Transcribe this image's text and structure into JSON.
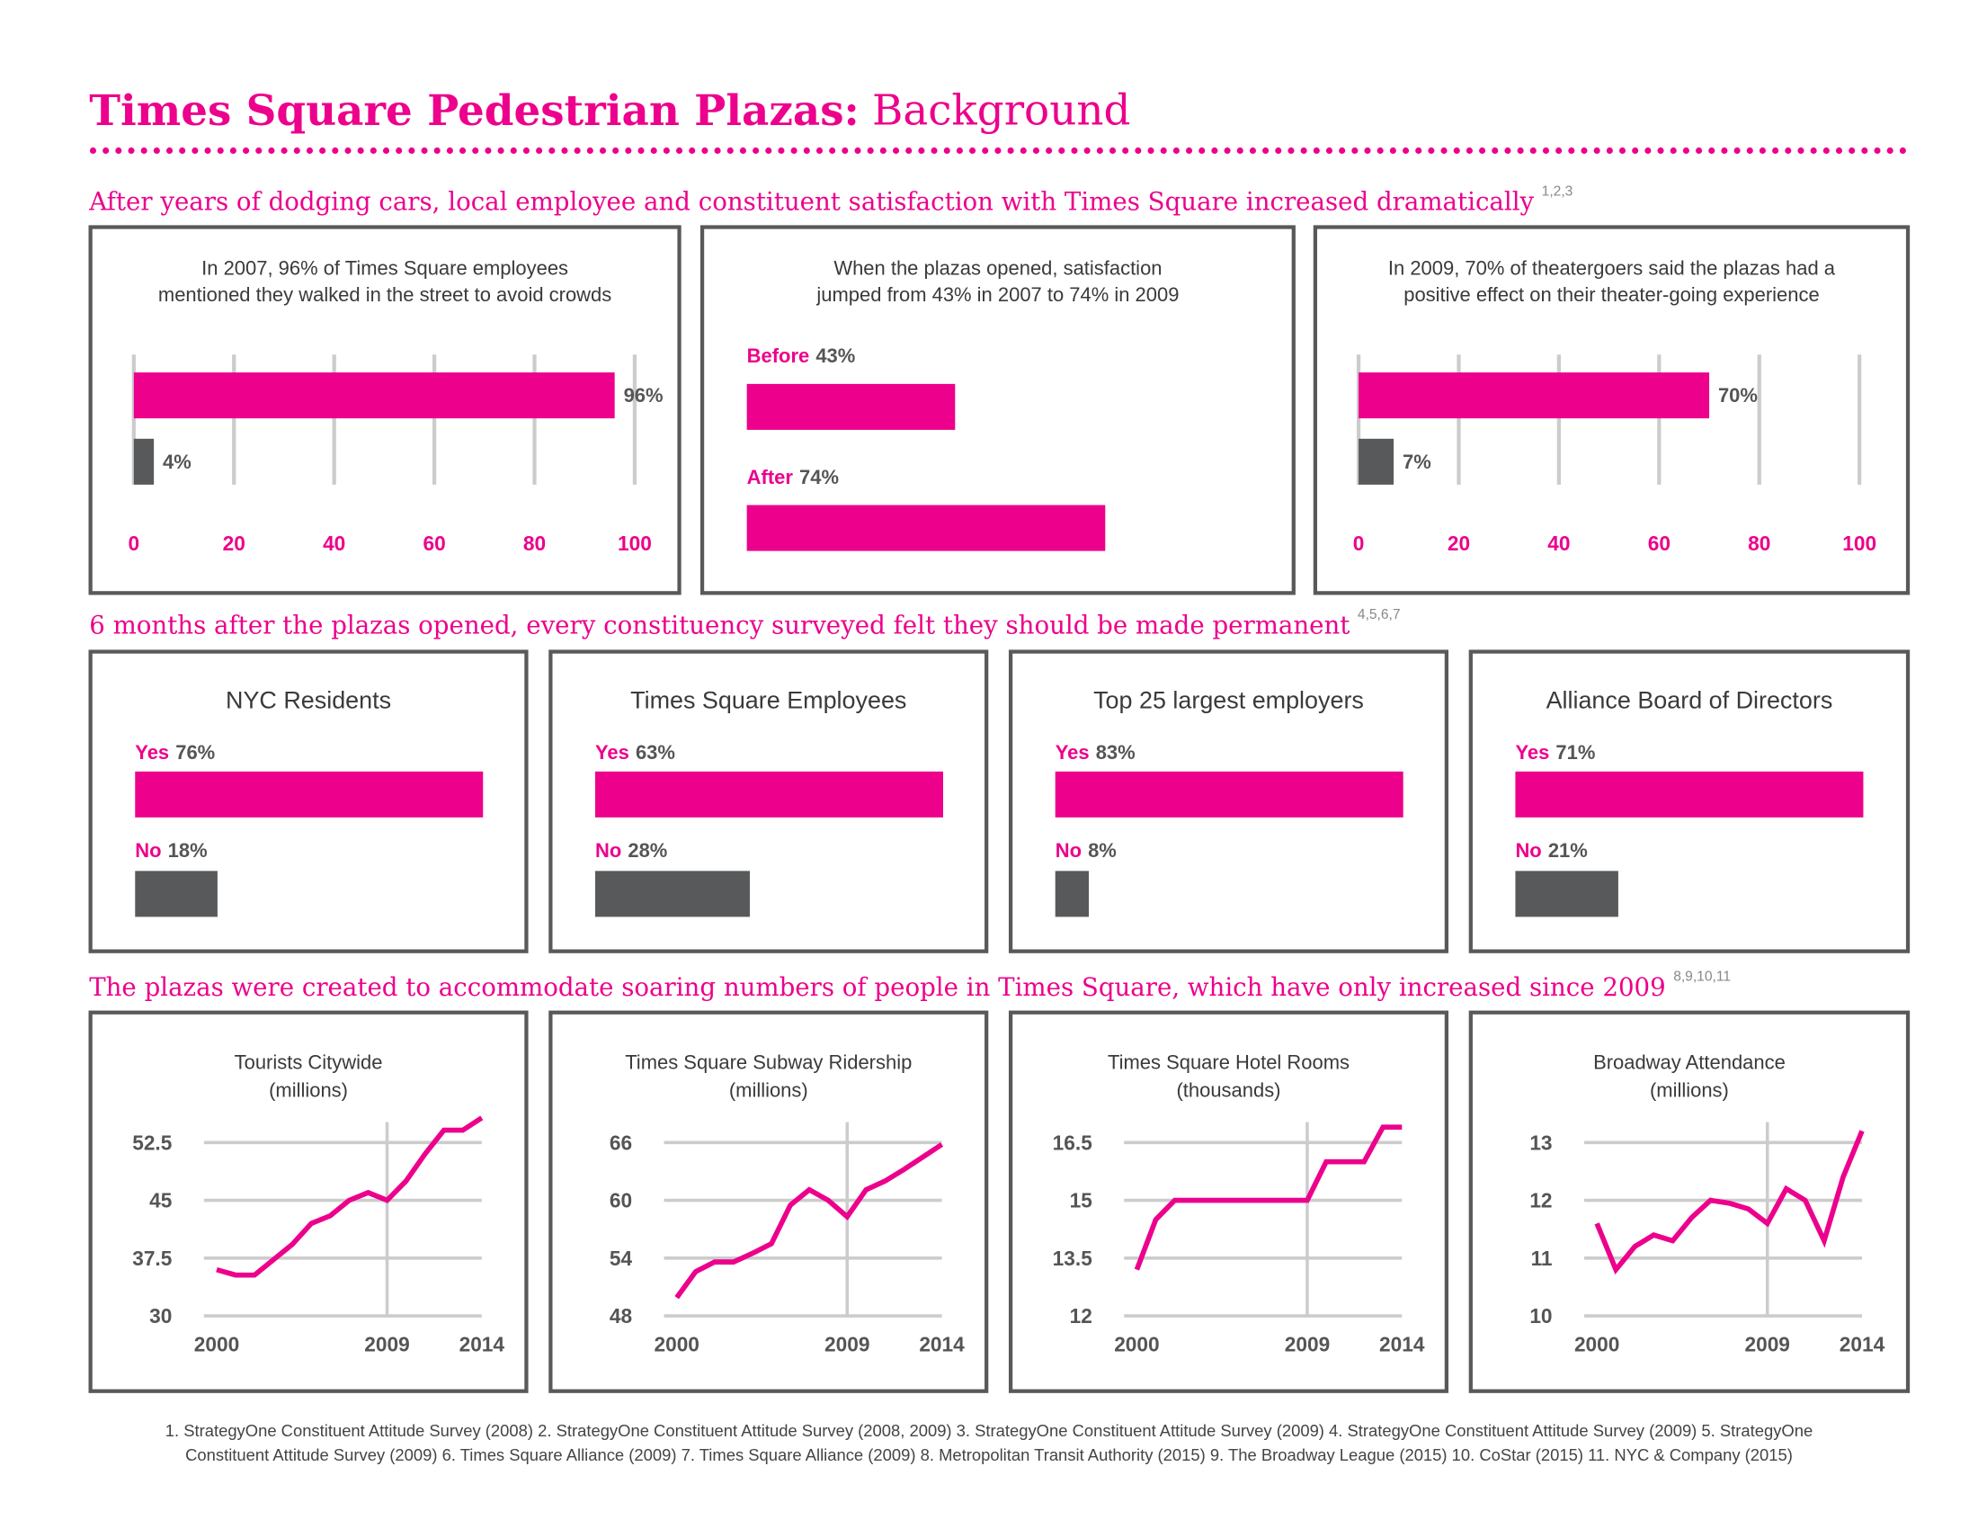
{
  "title": [
    "Times Square Pedestrian Plazas:",
    "Background"
  ],
  "sections": [
    {
      "text": "After years of dodging cars, local employee and constituent satisfaction with Times Square increased dramatically",
      "notes": "1,2,3"
    },
    {
      "text": "6 months after the plazas opened, every constituency surveyed felt they should be made permanent",
      "notes": "4,5,6,7"
    },
    {
      "text": "The plazas were created to accommodate soaring numbers of people in Times Square, which have only increased since 2009",
      "notes": "8,9,10,11"
    }
  ],
  "footnotes": [
    "1. StrategyOne Constituent Attitude Survey (2008) 2. StrategyOne Constituent Attitude Survey (2008, 2009) 3. StrategyOne Constituent Attitude Survey (2009) 4. StrategyOne Constituent Attitude Survey (2009) 5. StrategyOne",
    "Constituent Attitude Survey (2009) 6. Times Square Alliance (2009) 7. Times Square Alliance (2009) 8. Metropolitan Transit Authority (2015) 9. The Broadway League (2015) 10. CoStar (2015) 11. NYC & Company (2015)"
  ],
  "chart_data": [
    {
      "type": "bar",
      "horizontal": true,
      "title": [
        "In 2007, 96% of Times Square employees",
        "mentioned they walked in the street to avoid crowds"
      ],
      "values": [
        96,
        4
      ],
      "value_labels": [
        "96%",
        "4%"
      ],
      "colors": [
        "#ec008c",
        "#58595b"
      ],
      "xlim": [
        0,
        100
      ],
      "xticks": [
        0,
        20,
        40,
        60,
        80,
        100
      ],
      "grid": true
    },
    {
      "type": "bar",
      "horizontal": true,
      "title": [
        "When the plazas opened, satisfaction",
        "jumped from 43% in 2007 to 74% in 2009"
      ],
      "categories": [
        "Before",
        "After"
      ],
      "values": [
        43,
        74
      ],
      "value_labels": [
        "43%",
        "74%"
      ],
      "colors": [
        "#ec008c",
        "#ec008c"
      ],
      "xlim": [
        0,
        100
      ]
    },
    {
      "type": "bar",
      "horizontal": true,
      "title": [
        "In 2009, 70% of theatergoers said the plazas had a",
        "positive effect on their theater-going experience"
      ],
      "values": [
        70,
        7
      ],
      "value_labels": [
        "70%",
        "7%"
      ],
      "colors": [
        "#ec008c",
        "#58595b"
      ],
      "xlim": [
        0,
        100
      ],
      "xticks": [
        0,
        20,
        40,
        60,
        80,
        100
      ],
      "grid": true
    },
    {
      "type": "bar",
      "horizontal": true,
      "title": [
        "NYC Residents"
      ],
      "categories": [
        "Yes",
        "No"
      ],
      "values": [
        76,
        18
      ],
      "value_labels": [
        "76%",
        "18%"
      ],
      "colors": [
        "#ec008c",
        "#58595b"
      ],
      "xlim": [
        0,
        76
      ]
    },
    {
      "type": "bar",
      "horizontal": true,
      "title": [
        "Times Square Employees"
      ],
      "categories": [
        "Yes",
        "No"
      ],
      "values": [
        63,
        28
      ],
      "value_labels": [
        "63%",
        "28%"
      ],
      "colors": [
        "#ec008c",
        "#58595b"
      ],
      "xlim": [
        0,
        63
      ]
    },
    {
      "type": "bar",
      "horizontal": true,
      "title": [
        "Top 25 largest employers"
      ],
      "categories": [
        "Yes",
        "No"
      ],
      "values": [
        83,
        8
      ],
      "value_labels": [
        "83%",
        "8%"
      ],
      "colors": [
        "#ec008c",
        "#58595b"
      ],
      "xlim": [
        0,
        83
      ]
    },
    {
      "type": "bar",
      "horizontal": true,
      "title": [
        "Alliance Board of Directors"
      ],
      "categories": [
        "Yes",
        "No"
      ],
      "values": [
        71,
        21
      ],
      "value_labels": [
        "71%",
        "21%"
      ],
      "colors": [
        "#ec008c",
        "#58595b"
      ],
      "xlim": [
        0,
        71
      ]
    },
    {
      "type": "line",
      "title": [
        "Tourists Citywide",
        "(millions)"
      ],
      "color": "#ec008c",
      "x": [
        2000,
        2001,
        2002,
        2003,
        2004,
        2005,
        2006,
        2007,
        2008,
        2009,
        2010,
        2011,
        2012,
        2013,
        2014
      ],
      "values": [
        36.0,
        35.3,
        35.3,
        37.3,
        39.3,
        42.0,
        43.0,
        45.0,
        46.0,
        45.0,
        47.5,
        51.0,
        54.1,
        54.1,
        55.7
      ],
      "xlim": [
        2000,
        2014
      ],
      "xticks": [
        2000,
        2009,
        2014
      ],
      "ylim": [
        30,
        52.5
      ],
      "yticks": [
        30,
        37.5,
        45,
        52.5
      ],
      "grid": true
    },
    {
      "type": "line",
      "title": [
        "Times Square Subway Ridership",
        "(millions)"
      ],
      "color": "#ec008c",
      "x": [
        2000,
        2001,
        2002,
        2003,
        2004,
        2005,
        2006,
        2007,
        2008,
        2009,
        2010,
        2011,
        2012,
        2013,
        2014
      ],
      "values": [
        49.9,
        52.6,
        53.6,
        53.6,
        54.5,
        55.5,
        59.5,
        61.1,
        60.0,
        58.3,
        61.1,
        62.0,
        63.2,
        64.5,
        65.8
      ],
      "xlim": [
        2000,
        2014
      ],
      "xticks": [
        2000,
        2009,
        2014
      ],
      "ylim": [
        48,
        66
      ],
      "yticks": [
        48,
        54,
        60,
        66
      ],
      "grid": true
    },
    {
      "type": "line",
      "title": [
        "Times Square Hotel Rooms",
        "(thousands)"
      ],
      "color": "#ec008c",
      "x": [
        2000,
        2001,
        2002,
        2003,
        2004,
        2005,
        2006,
        2007,
        2008,
        2009,
        2010,
        2011,
        2012,
        2013,
        2014
      ],
      "values": [
        13.2,
        14.5,
        15.0,
        15.0,
        15.0,
        15.0,
        15.0,
        15.0,
        15.0,
        15.0,
        16.0,
        16.0,
        16.0,
        16.9,
        16.9
      ],
      "xlim": [
        2000,
        2014
      ],
      "xticks": [
        2000,
        2009,
        2014
      ],
      "ylim": [
        12,
        16.5
      ],
      "yticks": [
        12,
        13.5,
        15,
        16.5
      ],
      "grid": true
    },
    {
      "type": "line",
      "title": [
        "Broadway Attendance",
        "(millions)"
      ],
      "color": "#ec008c",
      "x": [
        2000,
        2001,
        2002,
        2003,
        2004,
        2005,
        2006,
        2007,
        2008,
        2009,
        2010,
        2011,
        2012,
        2013,
        2014
      ],
      "values": [
        11.6,
        10.8,
        11.2,
        11.4,
        11.3,
        11.7,
        12.0,
        11.95,
        11.85,
        11.6,
        12.2,
        12.0,
        11.3,
        12.4,
        13.2
      ],
      "xlim": [
        2000,
        2014
      ],
      "xticks": [
        2000,
        2009,
        2014
      ],
      "ylim": [
        10,
        13
      ],
      "yticks": [
        10,
        11,
        12,
        13
      ],
      "grid": true
    }
  ]
}
